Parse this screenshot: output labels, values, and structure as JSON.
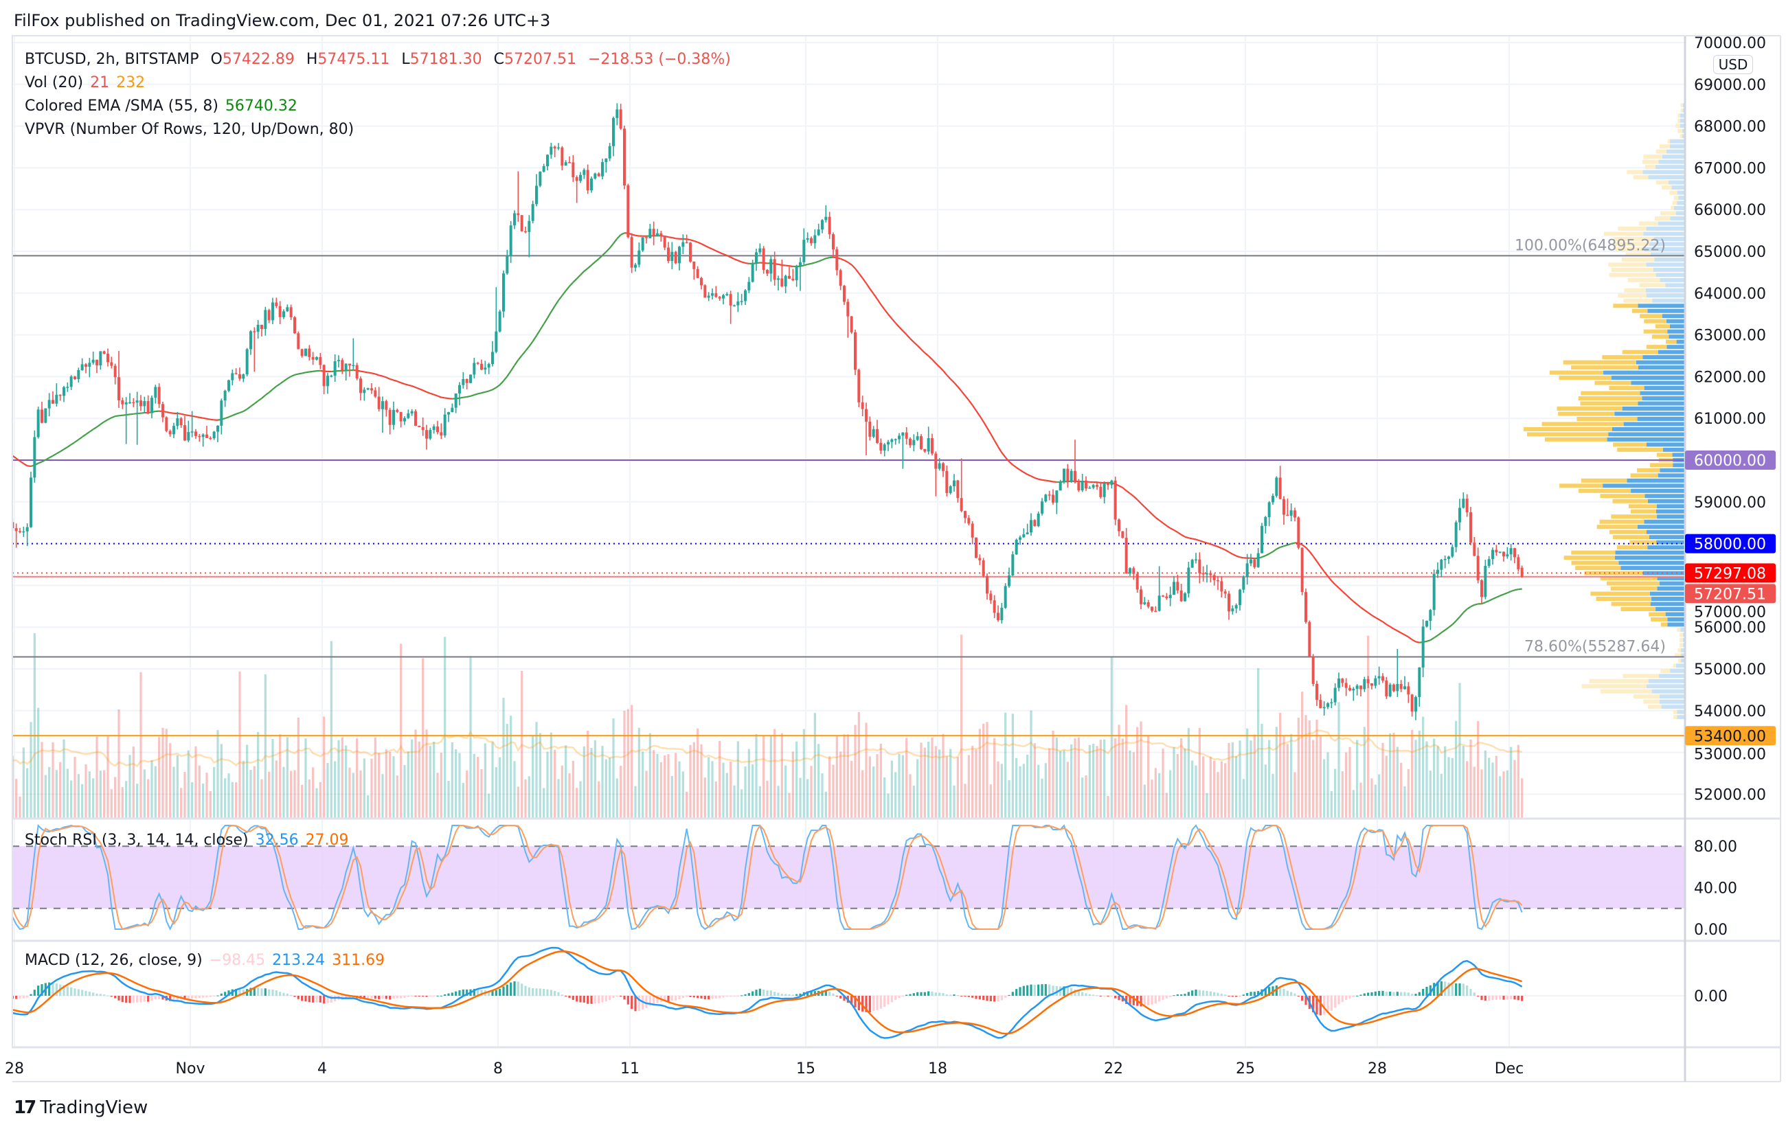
{
  "header": {
    "published": "FilFox published on TradingView.com, Dec 01, 2021 07:26 UTC+3"
  },
  "legend": {
    "symbol": "BTCUSD, 2h, BITSTAMP",
    "o_label": "O",
    "o": "57422.89",
    "h_label": "H",
    "h": "57475.11",
    "l_label": "L",
    "l": "57181.30",
    "c_label": "C",
    "c": "57207.51",
    "change": "−218.53 (−0.38%)",
    "vol_label": "Vol (20)",
    "vol_value": "21",
    "vol_ma": "232",
    "ema_label": "Colored EMA /SMA (55, 8)",
    "ema_value": "56740.32",
    "vpvr_label": "VPVR (Number Of Rows, 120, Up/Down, 80)",
    "stoch_label": "Stoch RSI (3, 3, 14, 14, close)",
    "stoch_k": "32.56",
    "stoch_d": "27.09",
    "macd_label": "MACD (12, 26, close, 9)",
    "macd_hist": "−98.45",
    "macd_line": "213.24",
    "macd_signal": "311.69"
  },
  "price_axis": {
    "currency": "USD",
    "ticks": [
      70000,
      69000,
      68000,
      67000,
      66000,
      65000,
      64000,
      63000,
      62000,
      61000,
      60000,
      59000,
      58000,
      57000,
      56000,
      55000,
      54000,
      53000,
      52000
    ],
    "price_labels": [
      {
        "text": "60000.00",
        "value": 60000,
        "bg": "#9575cd",
        "fg": "#ffffff"
      },
      {
        "text": "58000.00",
        "value": 58000,
        "bg": "#0000ff",
        "fg": "#ffffff"
      },
      {
        "text": "57297.08",
        "value": 57297.08,
        "bg": "#ff0000",
        "fg": "#ffffff"
      },
      {
        "text": "57207.51",
        "value": 57207.51,
        "bg": "#ef5350",
        "fg": "#ffffff"
      },
      {
        "text": "53400.00",
        "value": 53400,
        "bg": "#ffa726",
        "fg": "#131722"
      }
    ]
  },
  "stoch_axis": {
    "ticks": [
      {
        "text": "80.00",
        "v": 80
      },
      {
        "text": "40.00",
        "v": 40
      },
      {
        "text": "0.00",
        "v": 0
      }
    ]
  },
  "macd_axis": {
    "ticks": [
      {
        "text": "0.00",
        "v": 0
      }
    ]
  },
  "time_axis": [
    {
      "label": "28",
      "t": 0
    },
    {
      "label": "Nov",
      "t": 4
    },
    {
      "label": "4",
      "t": 7
    },
    {
      "label": "8",
      "t": 11
    },
    {
      "label": "11",
      "t": 14
    },
    {
      "label": "15",
      "t": 18
    },
    {
      "label": "18",
      "t": 21
    },
    {
      "label": "22",
      "t": 25
    },
    {
      "label": "25",
      "t": 28
    },
    {
      "label": "28",
      "t": 31
    },
    {
      "label": "Dec",
      "t": 34
    }
  ],
  "drawings": [
    {
      "type": "fib",
      "text": "100.00%(64895.22)",
      "value": 64895.22,
      "color": "#787b86"
    },
    {
      "type": "fib",
      "text": "78.60%(55287.64)",
      "value": 55287.64,
      "color": "#787b86"
    },
    {
      "type": "hline",
      "value": 60000,
      "color": "#7e57c2"
    },
    {
      "type": "hline",
      "value": 53400,
      "color": "#ff9800"
    },
    {
      "type": "dotted",
      "value": 58000,
      "color": "#0000ff"
    },
    {
      "type": "dotted",
      "value": 57297.08,
      "color": "#ef5350"
    },
    {
      "type": "hline",
      "value": 57207.51,
      "color": "#f77c7a"
    }
  ],
  "colors": {
    "up": "#26a69a",
    "down": "#ef5350",
    "ema_up": "#43a047",
    "ema_down": "#f44336",
    "vp_up": "#5aa9e6",
    "vp_down": "#f9d063",
    "vp_up_light": "#c8e1f5",
    "vp_down_light": "#fdeec8",
    "stoch_band": "#e9d0fd",
    "k": "#2196f3",
    "d": "#ff6d00"
  },
  "chart_data": {
    "type": "candlestick",
    "interval": "2h",
    "time_unit": "days since Oct 28 00:00",
    "price_path": [
      [
        -4,
        61500
      ],
      [
        -2,
        60300
      ],
      [
        -0.5,
        59300
      ],
      [
        0,
        58700
      ],
      [
        0.2,
        58300
      ],
      [
        0.45,
        61000
      ],
      [
        1.0,
        61500
      ],
      [
        1.75,
        62500
      ],
      [
        2.3,
        61800
      ],
      [
        3.05,
        61200
      ],
      [
        3.6,
        60900
      ],
      [
        4.2,
        60500
      ],
      [
        4.9,
        61700
      ],
      [
        5.66,
        63700
      ],
      [
        6.2,
        63200
      ],
      [
        7.0,
        62200
      ],
      [
        7.5,
        62500
      ],
      [
        8.0,
        61300
      ],
      [
        8.8,
        61000
      ],
      [
        9.6,
        60600
      ],
      [
        10.1,
        61800
      ],
      [
        10.6,
        62000
      ],
      [
        11.0,
        63000
      ],
      [
        11.25,
        65500
      ],
      [
        11.6,
        65800
      ],
      [
        12.2,
        67800
      ],
      [
        12.7,
        66800
      ],
      [
        13.2,
        66800
      ],
      [
        13.7,
        68700
      ],
      [
        13.95,
        64800
      ],
      [
        14.5,
        65300
      ],
      [
        15.3,
        64700
      ],
      [
        15.7,
        63800
      ],
      [
        16.3,
        63800
      ],
      [
        16.85,
        64700
      ],
      [
        17.6,
        64400
      ],
      [
        18.0,
        65500
      ],
      [
        18.4,
        65900
      ],
      [
        18.8,
        64100
      ],
      [
        19.2,
        61000
      ],
      [
        19.7,
        60500
      ],
      [
        20.5,
        60700
      ],
      [
        21.0,
        59700
      ],
      [
        21.5,
        59000
      ],
      [
        21.9,
        57300
      ],
      [
        22.3,
        56300
      ],
      [
        22.7,
        57800
      ],
      [
        23.2,
        58800
      ],
      [
        23.9,
        59700
      ],
      [
        24.4,
        59300
      ],
      [
        24.8,
        59600
      ],
      [
        25.3,
        57300
      ],
      [
        25.8,
        56400
      ],
      [
        26.5,
        57000
      ],
      [
        26.9,
        57500
      ],
      [
        27.5,
        56600
      ],
      [
        28.2,
        57800
      ],
      [
        28.7,
        59200
      ],
      [
        29.1,
        58600
      ],
      [
        29.4,
        55500
      ],
      [
        29.6,
        54300
      ],
      [
        30.3,
        54600
      ],
      [
        30.7,
        55000
      ],
      [
        31.4,
        54300
      ],
      [
        31.8,
        53900
      ],
      [
        32.0,
        56300
      ],
      [
        32.4,
        57700
      ],
      [
        32.9,
        58700
      ],
      [
        33.3,
        57000
      ],
      [
        33.7,
        58200
      ],
      [
        34.25,
        57207.51
      ]
    ],
    "last_bar": {
      "o": 57422.89,
      "h": 57475.11,
      "l": 57181.3,
      "c": 57207.51
    },
    "ylim": [
      51500,
      70000
    ]
  },
  "footer": {
    "brand": "TradingView",
    "brand_mark": "17"
  }
}
